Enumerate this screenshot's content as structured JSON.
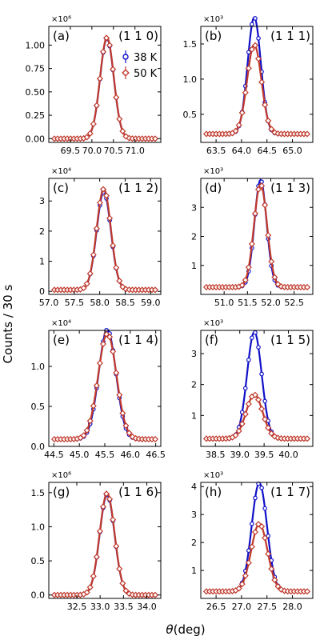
{
  "figure": {
    "ylabel": "Counts / 30 s",
    "xlabel": "θ(deg)",
    "legend": [
      {
        "label": "38 K",
        "color": "#1010c8",
        "marker": "circle"
      },
      {
        "label": "50 K",
        "color": "#c0392b",
        "marker": "diamond"
      }
    ],
    "colors": {
      "series_38K": "#1010c8",
      "series_50K": "#c0392b"
    }
  },
  "chart_data": [
    {
      "type": "line",
      "panel": "(a)",
      "hkl": "(1 1 0)",
      "multiplier": "×10⁶",
      "xlim": [
        69.0,
        71.6
      ],
      "ylim": [
        -0.04,
        1.2
      ],
      "xticks": [
        "69.5",
        "70.0",
        "70.5",
        "71.0"
      ],
      "yticks": [
        "0.00",
        "0.25",
        "0.50",
        "0.75",
        "1.00"
      ],
      "series": [
        {
          "name": "38 K",
          "center": 70.35,
          "sigma": 0.16,
          "peak": 1.07,
          "background": 0.0
        },
        {
          "name": "50 K",
          "center": 70.35,
          "sigma": 0.16,
          "peak": 1.08,
          "background": 0.0
        }
      ],
      "points": 32,
      "legend_visible": true
    },
    {
      "type": "line",
      "panel": "(b)",
      "hkl": "(1 1 1)",
      "multiplier": "×10³",
      "xlim": [
        63.2,
        65.4
      ],
      "ylim": [
        0.1,
        1.75
      ],
      "xticks": [
        "63.5",
        "64.0",
        "64.5",
        "65.0"
      ],
      "yticks": [
        "0.5",
        "1.0",
        "1.5"
      ],
      "series": [
        {
          "name": "38 K",
          "center": 64.25,
          "sigma": 0.13,
          "peak": 1.66,
          "background": 0.22
        },
        {
          "name": "50 K",
          "center": 64.25,
          "sigma": 0.14,
          "peak": 1.27,
          "background": 0.22
        }
      ],
      "points": 32,
      "legend_visible": false
    },
    {
      "type": "line",
      "panel": "(c)",
      "hkl": "(1 1 2)",
      "multiplier": "×10⁴",
      "xlim": [
        57.0,
        59.2
      ],
      "ylim": [
        -0.1,
        3.75
      ],
      "xticks": [
        "57.0",
        "57.5",
        "58.0",
        "58.5",
        "59.0"
      ],
      "yticks": [
        "0",
        "1",
        "2",
        "3"
      ],
      "series": [
        {
          "name": "38 K",
          "center": 58.08,
          "sigma": 0.14,
          "peak": 3.25,
          "background": 0.05
        },
        {
          "name": "50 K",
          "center": 58.08,
          "sigma": 0.14,
          "peak": 3.35,
          "background": 0.05
        }
      ],
      "points": 32,
      "legend_visible": false
    },
    {
      "type": "line",
      "panel": "(d)",
      "hkl": "(1 1 3)",
      "multiplier": "×10³",
      "xlim": [
        50.5,
        52.9
      ],
      "ylim": [
        0.0,
        4.0
      ],
      "xticks": [
        "51.0",
        "51.5",
        "52.0",
        "52.5"
      ],
      "yticks": [
        "1",
        "2",
        "3"
      ],
      "series": [
        {
          "name": "38 K",
          "center": 51.78,
          "sigma": 0.13,
          "peak": 3.7,
          "background": 0.25
        },
        {
          "name": "50 K",
          "center": 51.78,
          "sigma": 0.14,
          "peak": 3.55,
          "background": 0.25
        }
      ],
      "points": 32,
      "legend_visible": false
    },
    {
      "type": "line",
      "panel": "(e)",
      "hkl": "(1 1 4)",
      "multiplier": "×10⁴",
      "xlim": [
        44.4,
        46.6
      ],
      "ylim": [
        0.0,
        1.45
      ],
      "xticks": [
        "44.5",
        "45.0",
        "45.5",
        "46.0",
        "46.5"
      ],
      "yticks": [
        "0.0",
        "0.5",
        "1.0"
      ],
      "series": [
        {
          "name": "38 K",
          "center": 45.55,
          "sigma": 0.17,
          "peak": 1.37,
          "background": 0.09
        },
        {
          "name": "50 K",
          "center": 45.55,
          "sigma": 0.18,
          "peak": 1.32,
          "background": 0.09
        }
      ],
      "points": 32,
      "legend_visible": false
    },
    {
      "type": "line",
      "panel": "(f)",
      "hkl": "(1 1 5)",
      "multiplier": "×10³",
      "xlim": [
        38.2,
        40.5
      ],
      "ylim": [
        0.0,
        3.75
      ],
      "xticks": [
        "38.5",
        "39.0",
        "39.5",
        "40.0"
      ],
      "yticks": [
        "1",
        "2",
        "3"
      ],
      "series": [
        {
          "name": "38 K",
          "center": 39.3,
          "sigma": 0.15,
          "peak": 3.45,
          "background": 0.25
        },
        {
          "name": "50 K",
          "center": 39.3,
          "sigma": 0.17,
          "peak": 1.42,
          "background": 0.25
        }
      ],
      "points": 32,
      "legend_visible": false
    },
    {
      "type": "line",
      "panel": "(g)",
      "hkl": "(1 1 6)",
      "multiplier": "×10⁶",
      "xlim": [
        31.9,
        34.3
      ],
      "ylim": [
        -0.05,
        1.65
      ],
      "xticks": [
        "32.5",
        "33.0",
        "33.5",
        "34.0"
      ],
      "yticks": [
        "0.0",
        "0.5",
        "1.0",
        "1.5"
      ],
      "series": [
        {
          "name": "38 K",
          "center": 33.15,
          "sigma": 0.16,
          "peak": 1.47,
          "background": 0.0
        },
        {
          "name": "50 K",
          "center": 33.15,
          "sigma": 0.16,
          "peak": 1.49,
          "background": 0.0
        }
      ],
      "points": 32,
      "legend_visible": false
    },
    {
      "type": "line",
      "panel": "(h)",
      "hkl": "(1 1 7)",
      "multiplier": "×10³",
      "xlim": [
        26.2,
        28.4
      ],
      "ylim": [
        0.0,
        4.15
      ],
      "xticks": [
        "26.5",
        "27.0",
        "27.5",
        "28.0"
      ],
      "yticks": [
        "1",
        "2",
        "3",
        "4"
      ],
      "series": [
        {
          "name": "38 K",
          "center": 27.35,
          "sigma": 0.15,
          "peak": 3.88,
          "background": 0.25
        },
        {
          "name": "50 K",
          "center": 27.35,
          "sigma": 0.16,
          "peak": 2.42,
          "background": 0.25
        }
      ],
      "points": 32,
      "legend_visible": false
    }
  ]
}
